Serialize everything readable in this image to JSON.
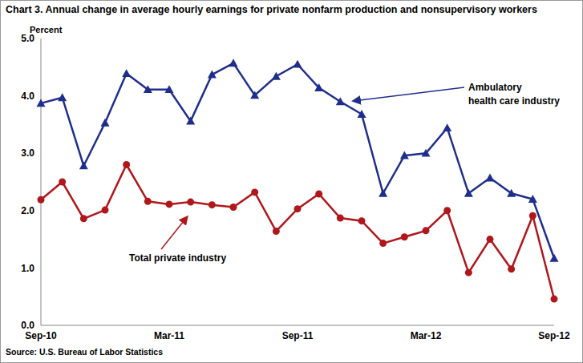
{
  "chart_data": {
    "type": "line",
    "title": "Chart 3. Annual change in average hourly earnings for private nonfarm production and nonsupervisory workers",
    "y_label": "Percent",
    "source": "Source: U.S. Bureau of Labor Statistics",
    "annotations": [
      [
        "Ambulatory",
        "health care industry"
      ],
      [
        "Total private industry"
      ]
    ],
    "categories": [
      "Sep-10",
      null,
      null,
      null,
      null,
      null,
      "Mar-11",
      null,
      null,
      null,
      null,
      null,
      "Sep-11",
      null,
      null,
      null,
      null,
      null,
      "Mar-12",
      null,
      null,
      null,
      null,
      null,
      "Sep-12"
    ],
    "series": [
      {
        "name": "Ambulatory health care industry",
        "color": "#1f2e8c",
        "marker": "triangle",
        "values": [
          3.87,
          3.97,
          2.78,
          3.53,
          4.39,
          4.11,
          4.11,
          3.56,
          4.37,
          4.57,
          4.01,
          4.34,
          4.55,
          4.14,
          3.9,
          3.68,
          2.3,
          2.96,
          3.0,
          3.44,
          2.3,
          2.57,
          2.3,
          2.2,
          1.17
        ]
      },
      {
        "name": "Total private industry",
        "color": "#b0171c",
        "marker": "circle",
        "values": [
          2.19,
          2.5,
          1.86,
          2.01,
          2.8,
          2.16,
          2.11,
          2.15,
          2.1,
          2.06,
          2.32,
          1.64,
          2.03,
          2.29,
          1.87,
          1.82,
          1.43,
          1.54,
          1.65,
          2.0,
          0.92,
          1.5,
          0.98,
          1.91,
          0.46
        ]
      }
    ],
    "ylim": [
      0,
      5
    ],
    "yticks": [
      {
        "value": 0,
        "label": "0.0"
      },
      {
        "value": 1,
        "label": "1.0"
      },
      {
        "value": 2,
        "label": "2.0"
      },
      {
        "value": 3,
        "label": "3.0"
      },
      {
        "value": 4,
        "label": "4.0"
      },
      {
        "value": 5,
        "label": "5.0"
      }
    ],
    "grid": false
  }
}
